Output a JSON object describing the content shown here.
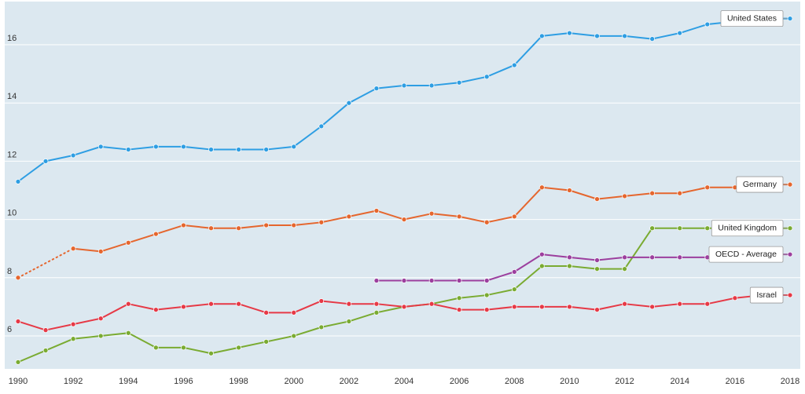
{
  "chart_data": {
    "type": "line",
    "x": [
      1990,
      1991,
      1992,
      1993,
      1994,
      1995,
      1996,
      1997,
      1998,
      1999,
      2000,
      2001,
      2002,
      2003,
      2004,
      2005,
      2006,
      2007,
      2008,
      2009,
      2010,
      2011,
      2012,
      2013,
      2014,
      2015,
      2016,
      2017,
      2018
    ],
    "x_tick_labels": [
      "1990",
      "1992",
      "1994",
      "1996",
      "1998",
      "2000",
      "2002",
      "2004",
      "2006",
      "2008",
      "2010",
      "2012",
      "2014",
      "2016",
      "2018"
    ],
    "y_tick_labels": [
      "6",
      "8",
      "10",
      "12",
      "14",
      "16"
    ],
    "xlim": [
      1990,
      2018
    ],
    "ylim": [
      5,
      17.8
    ],
    "grid": true,
    "background_color": "#dce8f0",
    "series": [
      {
        "name": "United States",
        "color": "#2e9ee3",
        "values": [
          11.3,
          12.0,
          12.2,
          12.5,
          12.4,
          12.5,
          12.5,
          12.4,
          12.4,
          12.4,
          12.5,
          13.2,
          14.0,
          14.5,
          14.6,
          14.6,
          14.7,
          14.9,
          15.3,
          16.3,
          16.4,
          16.3,
          16.3,
          16.2,
          16.4,
          16.7,
          16.8,
          16.9,
          16.9
        ]
      },
      {
        "name": "Germany",
        "color": "#e5662e",
        "dotted_segments": [
          [
            1990,
            1992
          ]
        ],
        "values": [
          8.0,
          null,
          9.0,
          8.9,
          9.2,
          9.5,
          9.8,
          9.7,
          9.7,
          9.8,
          9.8,
          9.9,
          10.1,
          10.3,
          10.0,
          10.2,
          10.1,
          9.9,
          10.1,
          11.1,
          11.0,
          10.7,
          10.8,
          10.9,
          10.9,
          11.1,
          11.1,
          11.2,
          11.2
        ]
      },
      {
        "name": "United Kingdom",
        "color": "#7aab32",
        "values": [
          5.1,
          5.5,
          5.9,
          6.0,
          6.1,
          5.6,
          5.6,
          5.4,
          5.6,
          5.8,
          6.0,
          6.3,
          6.5,
          6.8,
          7.0,
          7.1,
          7.3,
          7.4,
          7.6,
          8.4,
          8.4,
          8.3,
          8.3,
          9.7,
          9.7,
          9.7,
          9.7,
          9.7,
          9.7
        ]
      },
      {
        "name": "OECD - Average",
        "color": "#9c3f9e",
        "values": [
          null,
          null,
          null,
          null,
          null,
          null,
          null,
          null,
          null,
          null,
          null,
          null,
          null,
          7.9,
          7.9,
          7.9,
          7.9,
          7.9,
          8.2,
          8.8,
          8.7,
          8.6,
          8.7,
          8.7,
          8.7,
          8.7,
          8.8,
          8.8,
          8.8
        ]
      },
      {
        "name": "Israel",
        "color": "#e63946",
        "values": [
          6.5,
          6.2,
          6.4,
          6.6,
          7.1,
          6.9,
          7.0,
          7.1,
          7.1,
          6.8,
          6.8,
          7.2,
          7.1,
          7.1,
          7.0,
          7.1,
          6.9,
          6.9,
          7.0,
          7.0,
          7.0,
          6.9,
          7.1,
          7.0,
          7.1,
          7.1,
          7.3,
          7.4,
          7.4
        ]
      }
    ]
  }
}
